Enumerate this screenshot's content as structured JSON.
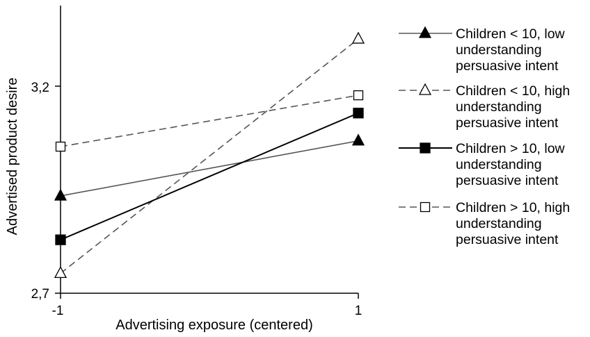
{
  "chart_data": {
    "type": "line",
    "x": [
      -1,
      1
    ],
    "x_tick_labels": [
      "-1",
      "1"
    ],
    "y_tick_labels": [
      "2,7",
      "3,2"
    ],
    "xlabel": "Advertising exposure (centered)",
    "ylabel": "Advertised product desire",
    "xlim": [
      -1,
      1
    ],
    "ylim": [
      2.7,
      3.2
    ],
    "grid": false,
    "legend_position": "right",
    "series": [
      {
        "name": "Children < 10, low understanding persuasive intent",
        "name_lines": [
          "Children < 10, low",
          "understanding",
          "persuasive intent"
        ],
        "values": [
          2.935,
          3.068
        ],
        "marker": "triangle",
        "filled": true,
        "dashed": false,
        "color": "#555555"
      },
      {
        "name": "Children < 10, high understanding persuasive intent",
        "name_lines": [
          "Children < 10, high",
          "understanding",
          "persuasive intent"
        ],
        "values": [
          2.748,
          3.314
        ],
        "marker": "triangle",
        "filled": false,
        "dashed": true,
        "color": "#555555"
      },
      {
        "name": "Children > 10, low understanding persuasive intent",
        "name_lines": [
          "Children > 10, low",
          "understanding",
          "persuasive intent"
        ],
        "values": [
          2.829,
          3.135
        ],
        "marker": "square",
        "filled": true,
        "dashed": false,
        "color": "#000000"
      },
      {
        "name": "Children > 10, high understanding persuasive intent",
        "name_lines": [
          "Children > 10, high",
          "understanding",
          "persuasive intent"
        ],
        "values": [
          3.054,
          3.178
        ],
        "marker": "square",
        "filled": false,
        "dashed": true,
        "color": "#555555"
      }
    ]
  }
}
